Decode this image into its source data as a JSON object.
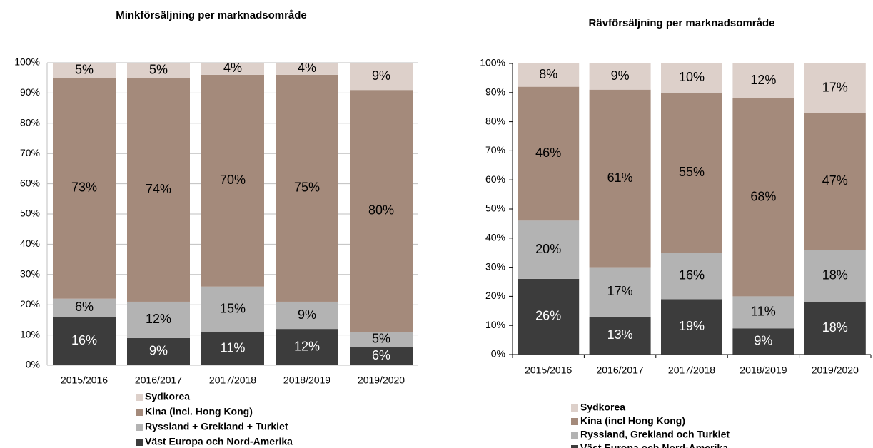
{
  "chart_data": [
    {
      "type": "stacked_bar",
      "title": "Minkförsäljning per marknadsområde",
      "categories": [
        "2015/2016",
        "2016/2017",
        "2017/2018",
        "2018/2019",
        "2019/2020"
      ],
      "series": [
        {
          "name": "Sydkorea",
          "color": "#ddd0ca",
          "values": [
            5,
            5,
            4,
            4,
            9
          ],
          "value_labels": [
            "5%",
            "5%",
            "4%",
            "4%",
            "9%"
          ]
        },
        {
          "name": "Kina (incl. Hong Kong)",
          "color": "#a48a7b",
          "values": [
            73,
            74,
            70,
            75,
            80
          ],
          "value_labels": [
            "73%",
            "74%",
            "70%",
            "75%",
            "80%"
          ]
        },
        {
          "name": "Ryssland + Grekland + Turkiet",
          "color": "#b3b3b3",
          "values": [
            6,
            12,
            15,
            9,
            5
          ],
          "value_labels": [
            "6%",
            "12%",
            "15%",
            "9%",
            "5%"
          ]
        },
        {
          "name": "Väst Europa och Nord-Amerika",
          "color": "#3c3c3c",
          "values": [
            16,
            9,
            11,
            12,
            6
          ],
          "value_labels": [
            "16%",
            "9%",
            "11%",
            "12%",
            "6%"
          ]
        }
      ],
      "ylim": [
        0,
        100
      ],
      "yticks": [
        {
          "value": 0,
          "label": "0%"
        },
        {
          "value": 10,
          "label": "10%"
        },
        {
          "value": 20,
          "label": "20%"
        },
        {
          "value": 30,
          "label": "30%"
        },
        {
          "value": 40,
          "label": "40%"
        },
        {
          "value": 50,
          "label": "50%"
        },
        {
          "value": 60,
          "label": "60%"
        },
        {
          "value": 70,
          "label": "70%"
        },
        {
          "value": 80,
          "label": "80%"
        },
        {
          "value": 90,
          "label": "90%"
        },
        {
          "value": 100,
          "label": "100%"
        }
      ],
      "grid": true,
      "legend": "bottom"
    },
    {
      "type": "stacked_bar",
      "title": "Rävförsäljning per marknadsområde",
      "categories": [
        "2015/2016",
        "2016/2017",
        "2017/2018",
        "2018/2019",
        "2019/2020"
      ],
      "series": [
        {
          "name": "Sydkorea",
          "color": "#ddd0ca",
          "values": [
            8,
            9,
            10,
            12,
            17
          ],
          "value_labels": [
            "8%",
            "9%",
            "10%",
            "12%",
            "17%"
          ]
        },
        {
          "name": "Kina (incl Hong Kong)",
          "color": "#a48a7b",
          "values": [
            46,
            61,
            55,
            68,
            47
          ],
          "value_labels": [
            "46%",
            "61%",
            "55%",
            "68%",
            "47%"
          ]
        },
        {
          "name": "Ryssland, Grekland och Turkiet",
          "color": "#b3b3b3",
          "values": [
            20,
            17,
            16,
            11,
            18
          ],
          "value_labels": [
            "20%",
            "17%",
            "16%",
            "11%",
            "18%"
          ]
        },
        {
          "name": "Väst Europa och Nord-Amerika",
          "color": "#3c3c3c",
          "values": [
            26,
            13,
            19,
            9,
            18
          ],
          "value_labels": [
            "26%",
            "13%",
            "19%",
            "9%",
            "18%"
          ]
        }
      ],
      "ylim": [
        0,
        100
      ],
      "yticks": [
        {
          "value": 0,
          "label": "0%"
        },
        {
          "value": 10,
          "label": "10%"
        },
        {
          "value": 20,
          "label": "20%"
        },
        {
          "value": 30,
          "label": "30%"
        },
        {
          "value": 40,
          "label": "40%"
        },
        {
          "value": 50,
          "label": "50%"
        },
        {
          "value": 60,
          "label": "60%"
        },
        {
          "value": 70,
          "label": "70%"
        },
        {
          "value": 80,
          "label": "80%"
        },
        {
          "value": 90,
          "label": "90%"
        },
        {
          "value": 100,
          "label": "100%"
        }
      ],
      "grid": false,
      "legend": "bottom"
    }
  ]
}
